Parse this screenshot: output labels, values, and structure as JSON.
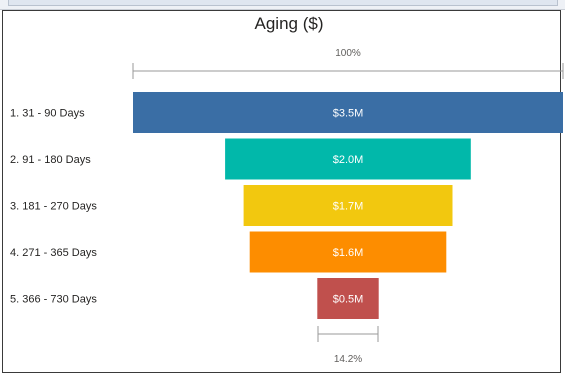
{
  "chart_data": {
    "type": "funnel",
    "title": "Aging ($)",
    "categories": [
      "1. 31 - 90 Days",
      "2. 91 - 180 Days",
      "3. 181 - 270 Days",
      "4. 271 - 365 Days",
      "5. 366 - 730 Days"
    ],
    "values": [
      3.5,
      2.0,
      1.7,
      1.6,
      0.5
    ],
    "value_labels": [
      "$3.5M",
      "$2.0M",
      "$1.7M",
      "$1.6M",
      "$0.5M"
    ],
    "colors": [
      "#3a6ea5",
      "#01b8aa",
      "#f2c80f",
      "#fd8d00",
      "#c0504d"
    ],
    "top_percent_label": "100%",
    "bottom_percent_label": "14.2%"
  }
}
